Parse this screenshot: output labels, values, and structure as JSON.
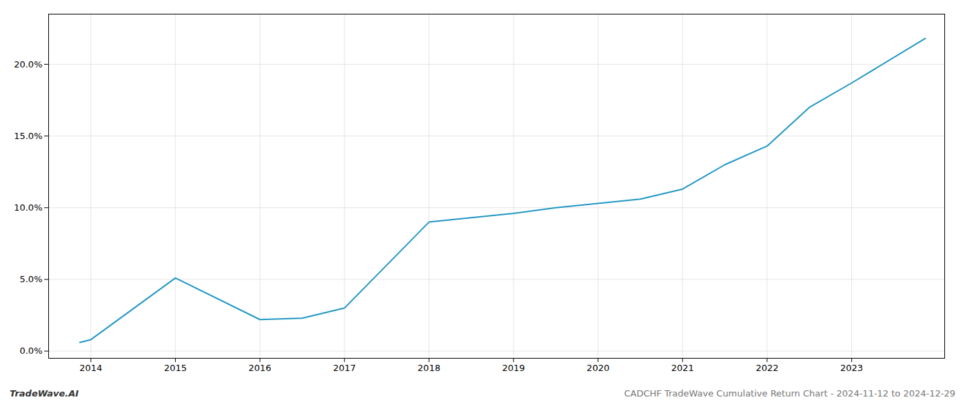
{
  "chart_data": {
    "type": "line",
    "x": [
      2013.87,
      2014.0,
      2015.0,
      2016.0,
      2016.5,
      2017.0,
      2017.5,
      2018.0,
      2018.5,
      2019.0,
      2019.5,
      2020.0,
      2020.5,
      2021.0,
      2021.5,
      2022.0,
      2022.5,
      2023.0,
      2023.87
    ],
    "values": [
      0.006,
      0.008,
      0.051,
      0.022,
      0.023,
      0.03,
      0.06,
      0.09,
      0.093,
      0.096,
      0.1,
      0.103,
      0.106,
      0.113,
      0.13,
      0.143,
      0.17,
      0.187,
      0.218
    ],
    "color": "#2196c4",
    "xlim": [
      2013.5,
      2024.1
    ],
    "xticks": [
      2014,
      2015,
      2016,
      2017,
      2018,
      2019,
      2020,
      2021,
      2022,
      2023
    ],
    "ylim": [
      -0.005,
      0.235
    ],
    "yticks": [
      {
        "value": 0.0,
        "label": "0.0%"
      },
      {
        "value": 0.05,
        "label": "5.0%"
      },
      {
        "value": 0.1,
        "label": "10.0%"
      },
      {
        "value": 0.15,
        "label": "15.0%"
      },
      {
        "value": 0.2,
        "label": "20.0%"
      }
    ],
    "grid": true,
    "annotations": [
      "TradeWave.AI",
      "CADCHF TradeWave Cumulative Return Chart - 2024-11-12 to 2024-12-29"
    ]
  }
}
